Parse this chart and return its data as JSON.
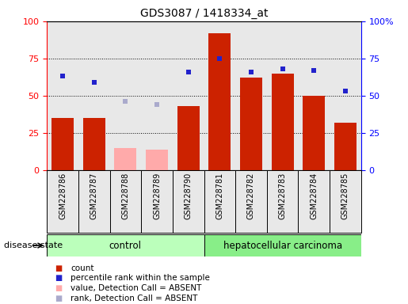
{
  "title": "GDS3087 / 1418334_at",
  "samples": [
    "GSM228786",
    "GSM228787",
    "GSM228788",
    "GSM228789",
    "GSM228790",
    "GSM228781",
    "GSM228782",
    "GSM228783",
    "GSM228784",
    "GSM228785"
  ],
  "bar_values": [
    35,
    35,
    15,
    14,
    43,
    92,
    62,
    65,
    50,
    32
  ],
  "bar_absent": [
    false,
    false,
    true,
    true,
    false,
    false,
    false,
    false,
    false,
    false
  ],
  "rank_values": [
    63,
    59,
    46,
    44,
    66,
    75,
    66,
    68,
    67,
    53
  ],
  "rank_absent": [
    false,
    false,
    true,
    true,
    false,
    false,
    false,
    false,
    false,
    false
  ],
  "bar_color_normal": "#cc2200",
  "bar_color_absent": "#ffaaaa",
  "rank_color_normal": "#2222cc",
  "rank_color_absent": "#aaaacc",
  "ylim": [
    0,
    100
  ],
  "y2lim": [
    0,
    100
  ],
  "yticks": [
    0,
    25,
    50,
    75,
    100
  ],
  "y2ticks": [
    0,
    25,
    50,
    75,
    100
  ],
  "ctrl_color": "#bbffbb",
  "hepa_color": "#88ee88",
  "col_bg": "#e8e8e8",
  "legend_items": [
    {
      "label": "count",
      "color": "#cc2200"
    },
    {
      "label": "percentile rank within the sample",
      "color": "#2222cc"
    },
    {
      "label": "value, Detection Call = ABSENT",
      "color": "#ffaaaa"
    },
    {
      "label": "rank, Detection Call = ABSENT",
      "color": "#aaaacc"
    }
  ],
  "disease_state_label": "disease state"
}
